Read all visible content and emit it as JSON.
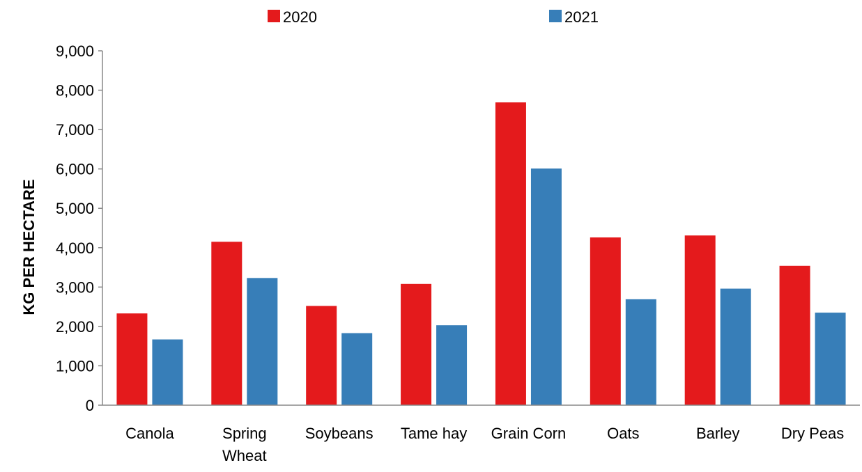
{
  "chart_data": {
    "type": "bar",
    "title": "",
    "xlabel": "",
    "ylabel": "KG PER HECTARE",
    "ylim": [
      0,
      9000
    ],
    "yticks": [
      "0",
      "1,000",
      "2,000",
      "3,000",
      "4,000",
      "5,000",
      "6,000",
      "7,000",
      "8,000",
      "9,000"
    ],
    "grid": false,
    "legend_position": "top",
    "categories": [
      [
        "Canola"
      ],
      [
        "Spring",
        "Wheat"
      ],
      [
        "Soybeans"
      ],
      [
        "Tame hay"
      ],
      [
        "Grain Corn"
      ],
      [
        "Oats"
      ],
      [
        "Barley"
      ],
      [
        "Dry Peas"
      ]
    ],
    "series": [
      {
        "name": "2020",
        "color": "#e41a1c",
        "values": [
          2330,
          4150,
          2520,
          3080,
          7690,
          4260,
          4310,
          3540
        ]
      },
      {
        "name": "2021",
        "color": "#377eb8",
        "values": [
          1670,
          3230,
          1830,
          2030,
          6010,
          2690,
          2960,
          2350
        ]
      }
    ]
  }
}
